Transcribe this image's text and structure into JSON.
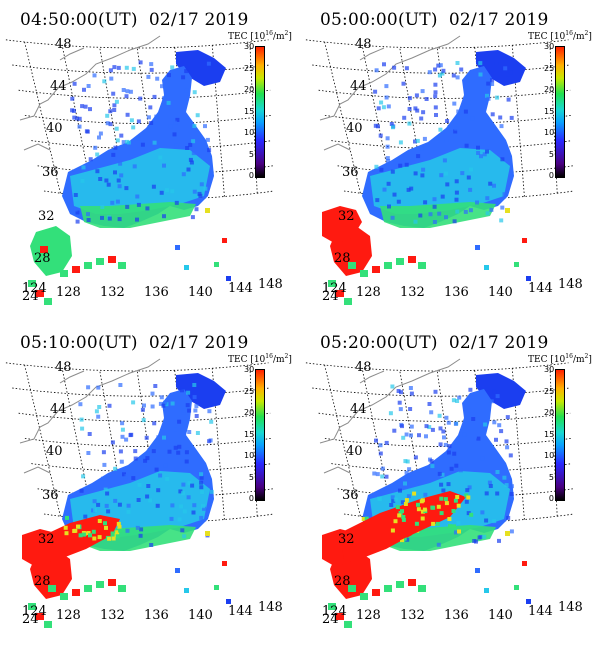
{
  "colorbar": {
    "title": "TEC [10",
    "exp": "16",
    "unit": "/m",
    "unit_exp": "2",
    "close": "]",
    "ticks": [
      "30",
      "25",
      "20",
      "15",
      "10",
      "5",
      "0"
    ]
  },
  "latitudes": [
    "48",
    "44",
    "40",
    "36",
    "32",
    "28",
    "24"
  ],
  "longitudes": [
    "124",
    "128",
    "132",
    "136",
    "140",
    "144",
    "148"
  ],
  "panels": [
    {
      "time": "04:50:00(UT)",
      "date": "02/17 2019",
      "level": 0
    },
    {
      "time": "05:00:00(UT)",
      "date": "02/17 2019",
      "level": 1
    },
    {
      "time": "05:10:00(UT)",
      "date": "02/17 2019",
      "level": 2
    },
    {
      "time": "05:20:00(UT)",
      "date": "02/17 2019",
      "level": 3
    }
  ],
  "colors": {
    "deep_blue": "#1b3ef0",
    "blue": "#2f6cff",
    "cyan": "#26c8ea",
    "green": "#33e07a",
    "yellow": "#e6e020",
    "red": "#ff1a10",
    "grid": "#000000",
    "coast": "#8c8c8c"
  }
}
